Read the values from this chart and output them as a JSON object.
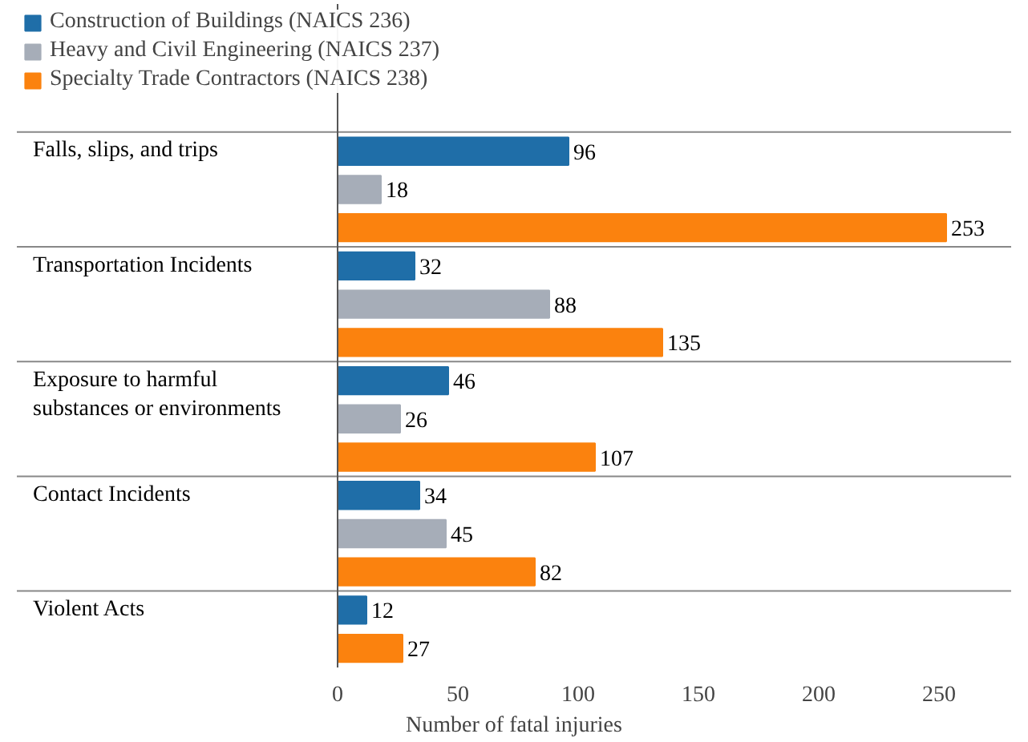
{
  "chart_data": {
    "type": "bar",
    "orientation": "horizontal",
    "categories": [
      "Falls, slips, and trips",
      "Transportation Incidents",
      "Exposure to harmful substances or environments",
      "Contact Incidents",
      "Violent Acts"
    ],
    "series": [
      {
        "name": "Construction of Buildings (NAICS 236)",
        "color": "#1f6ea8",
        "values": [
          96,
          32,
          46,
          34,
          12
        ]
      },
      {
        "name": "Heavy and Civil Engineering (NAICS 237)",
        "color": "#a6adb8",
        "values": [
          18,
          88,
          26,
          45,
          null
        ]
      },
      {
        "name": "Specialty Trade Contractors (NAICS 238)",
        "color": "#fb820e",
        "values": [
          253,
          135,
          107,
          82,
          27
        ]
      }
    ],
    "xlim": [
      0,
      280
    ],
    "xticks": [
      0,
      50,
      100,
      150,
      200,
      250
    ],
    "xlabel": "Number of fatal injuries",
    "data_labels": true,
    "legend": "top left",
    "grid": false
  }
}
